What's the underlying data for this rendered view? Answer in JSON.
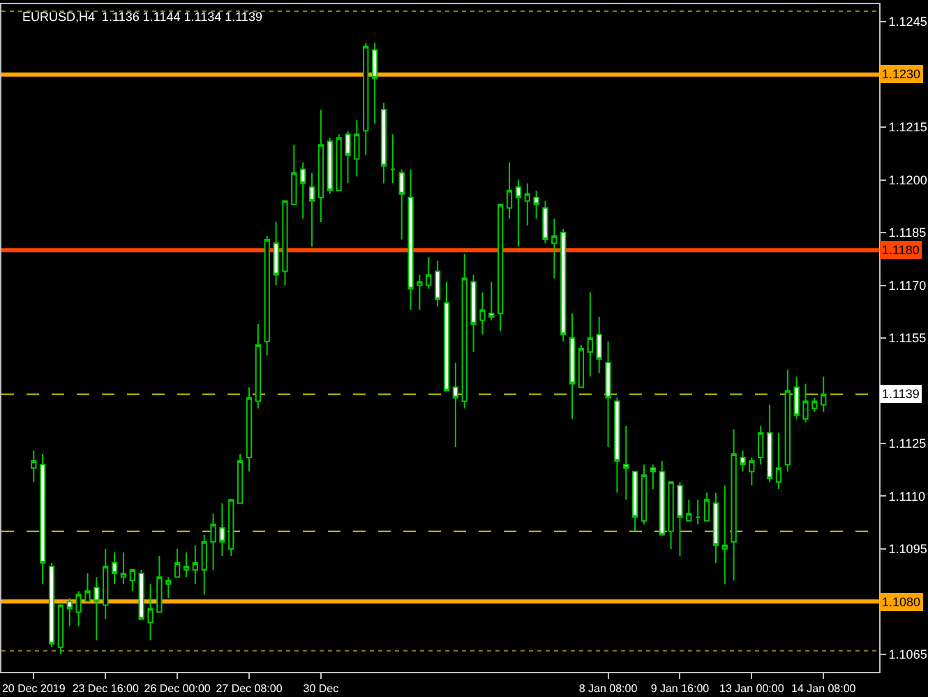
{
  "chart_data": {
    "type": "candlestick",
    "title": "EURUSD,H4  1.1136 1.1144 1.1134 1.1139",
    "categories": [
      "20 Dec 2019",
      null,
      null,
      null,
      null,
      null,
      null,
      null,
      "23 Dec 16:00",
      null,
      null,
      null,
      null,
      null,
      null,
      null,
      "26 Dec 00:00",
      null,
      null,
      null,
      null,
      null,
      null,
      null,
      "27 Dec 08:00",
      null,
      null,
      null,
      null,
      null,
      null,
      null,
      "30 Dec",
      null,
      null,
      null,
      null,
      null,
      null,
      null,
      null,
      null,
      null,
      null,
      null,
      null,
      null,
      null,
      null,
      null,
      null,
      null,
      null,
      null,
      null,
      null,
      null,
      null,
      null,
      null,
      null,
      null,
      null,
      null,
      "8 Jan 08:00",
      null,
      null,
      null,
      null,
      null,
      null,
      null,
      "9 Jan 16:00",
      null,
      null,
      null,
      null,
      null,
      null,
      null,
      "13 Jan 00:00",
      null,
      null,
      null,
      null,
      null,
      null,
      null,
      "14 Jan 08:00"
    ],
    "ohlc": [
      [
        1.1118,
        1.1123,
        1.1114,
        1.112
      ],
      [
        1.1119,
        1.1122,
        1.1085,
        1.1091
      ],
      [
        1.109,
        1.1091,
        1.1067,
        1.1068
      ],
      [
        1.1067,
        1.1079,
        1.1065,
        1.1079
      ],
      [
        1.108,
        1.1081,
        1.1073,
        1.1078
      ],
      [
        1.1077,
        1.1083,
        1.1073,
        1.1082
      ],
      [
        1.108,
        1.1088,
        1.108,
        1.1083
      ],
      [
        1.1084,
        1.1087,
        1.1069,
        1.108
      ],
      [
        1.1079,
        1.1095,
        1.1075,
        1.109
      ],
      [
        1.1091,
        1.1094,
        1.1085,
        1.1088
      ],
      [
        1.1087,
        1.1094,
        1.1085,
        1.1088
      ],
      [
        1.1086,
        1.1089,
        1.1083,
        1.1089
      ],
      [
        1.1088,
        1.1089,
        1.1075,
        1.1075
      ],
      [
        1.1074,
        1.1085,
        1.1069,
        1.1078
      ],
      [
        1.1077,
        1.1093,
        1.1077,
        1.1087
      ],
      [
        1.1085,
        1.1087,
        1.1081,
        1.1086
      ],
      [
        1.1087,
        1.1095,
        1.1087,
        1.1091
      ],
      [
        1.1089,
        1.1094,
        1.1087,
        1.109
      ],
      [
        1.1089,
        1.1096,
        1.1085,
        1.1091
      ],
      [
        1.1089,
        1.1099,
        1.1082,
        1.1097
      ],
      [
        1.1097,
        1.1105,
        1.1089,
        1.1102
      ],
      [
        1.1101,
        1.1108,
        1.1093,
        1.1097
      ],
      [
        1.1095,
        1.1109,
        1.1093,
        1.1109
      ],
      [
        1.1108,
        1.1122,
        1.1108,
        1.112
      ],
      [
        1.1121,
        1.1141,
        1.1117,
        1.1138
      ],
      [
        1.1137,
        1.1159,
        1.1135,
        1.1153
      ],
      [
        1.1154,
        1.1184,
        1.115,
        1.1183
      ],
      [
        1.1182,
        1.1188,
        1.117,
        1.1173
      ],
      [
        1.1174,
        1.1194,
        1.117,
        1.1194
      ],
      [
        1.1193,
        1.121,
        1.1193,
        1.1202
      ],
      [
        1.1203,
        1.1205,
        1.1189,
        1.1199
      ],
      [
        1.1198,
        1.1202,
        1.1181,
        1.1194
      ],
      [
        1.1195,
        1.122,
        1.1188,
        1.121
      ],
      [
        1.1211,
        1.1212,
        1.1196,
        1.1197
      ],
      [
        1.1197,
        1.1213,
        1.1197,
        1.1212
      ],
      [
        1.1213,
        1.1214,
        1.1199,
        1.1207
      ],
      [
        1.1206,
        1.1217,
        1.1201,
        1.1213
      ],
      [
        1.1214,
        1.1239,
        1.1207,
        1.1238
      ],
      [
        1.1237,
        1.1239,
        1.1216,
        1.1229
      ],
      [
        1.122,
        1.1222,
        1.1199,
        1.1204
      ],
      [
        1.1203,
        1.1213,
        1.1199,
        1.1203
      ],
      [
        1.1202,
        1.1203,
        1.1183,
        1.1196
      ],
      [
        1.1195,
        1.1203,
        1.1163,
        1.1169
      ],
      [
        1.117,
        1.1173,
        1.1163,
        1.1171
      ],
      [
        1.117,
        1.1178,
        1.1169,
        1.1173
      ],
      [
        1.1174,
        1.1177,
        1.1164,
        1.1166
      ],
      [
        1.1165,
        1.1171,
        1.114,
        1.114
      ],
      [
        1.1141,
        1.1148,
        1.1124,
        1.1138
      ],
      [
        1.1137,
        1.1179,
        1.1135,
        1.1172
      ],
      [
        1.1171,
        1.1173,
        1.1151,
        1.1159
      ],
      [
        1.116,
        1.1168,
        1.1156,
        1.1163
      ],
      [
        1.1162,
        1.1171,
        1.116,
        1.1161
      ],
      [
        1.1162,
        1.1193,
        1.1157,
        1.1193
      ],
      [
        1.1192,
        1.1205,
        1.1189,
        1.1197
      ],
      [
        1.1198,
        1.12,
        1.1181,
        1.1195
      ],
      [
        1.1194,
        1.1199,
        1.1187,
        1.1196
      ],
      [
        1.1195,
        1.1197,
        1.1189,
        1.1193
      ],
      [
        1.1192,
        1.1194,
        1.1182,
        1.1183
      ],
      [
        1.1182,
        1.1189,
        1.1172,
        1.1184
      ],
      [
        1.1185,
        1.1186,
        1.1154,
        1.1156
      ],
      [
        1.1155,
        1.1162,
        1.1132,
        1.1142
      ],
      [
        1.1141,
        1.1153,
        1.1141,
        1.1152
      ],
      [
        1.1151,
        1.1168,
        1.1144,
        1.1155
      ],
      [
        1.1156,
        1.1161,
        1.1145,
        1.1149
      ],
      [
        1.1148,
        1.1154,
        1.1124,
        1.1138
      ],
      [
        1.1137,
        1.1138,
        1.1111,
        1.112
      ],
      [
        1.1119,
        1.113,
        1.1109,
        1.1118
      ],
      [
        1.1117,
        1.1117,
        1.11,
        1.1104
      ],
      [
        1.1103,
        1.1119,
        1.1102,
        1.1116
      ],
      [
        1.1118,
        1.1119,
        1.1112,
        1.1117
      ],
      [
        1.1117,
        1.112,
        1.1099,
        1.1099
      ],
      [
        1.11,
        1.1114,
        1.1095,
        1.1114
      ],
      [
        1.1113,
        1.1114,
        1.1093,
        1.1104
      ],
      [
        1.1103,
        1.1109,
        1.1103,
        1.1105
      ],
      [
        1.1104,
        1.1109,
        1.1102,
        1.1104
      ],
      [
        1.1103,
        1.1111,
        1.1103,
        1.1109
      ],
      [
        1.1108,
        1.1111,
        1.1091,
        1.1096
      ],
      [
        1.1095,
        1.1113,
        1.1085,
        1.1096
      ],
      [
        1.1097,
        1.1129,
        1.1086,
        1.1122
      ],
      [
        1.1121,
        1.1123,
        1.1117,
        1.1119
      ],
      [
        1.1117,
        1.1121,
        1.1113,
        1.112
      ],
      [
        1.1121,
        1.113,
        1.1119,
        1.1128
      ],
      [
        1.1128,
        1.1136,
        1.1114,
        1.1115
      ],
      [
        1.1114,
        1.1128,
        1.1112,
        1.1118
      ],
      [
        1.1119,
        1.1146,
        1.1117,
        1.114
      ],
      [
        1.1141,
        1.1144,
        1.1132,
        1.1133
      ],
      [
        1.1132,
        1.1142,
        1.1131,
        1.1137
      ],
      [
        1.1135,
        1.1138,
        1.1134,
        1.1137
      ],
      [
        1.1136,
        1.1144,
        1.1134,
        1.1139
      ]
    ],
    "color": "#00c800",
    "ylim": [
      1.106,
      1.125
    ],
    "yticks": [
      1.1245,
      1.1215,
      {
        "value": 1.12,
        "label": "1.1200"
      },
      1.1185,
      {
        "value": 1.117,
        "label": "1.1170"
      },
      1.1155,
      1.1125,
      {
        "value": 1.111,
        "label": "1.1110"
      },
      1.1095,
      1.1065
    ],
    "ref_lines": [
      {
        "axis": "y",
        "value": 1.123,
        "label": "1.1230",
        "color": "#ffa500",
        "line_style": "solid"
      },
      {
        "axis": "y",
        "value": 1.118,
        "label": "1.1180",
        "color": "#ff4500",
        "line_style": "solid"
      },
      {
        "axis": "y",
        "value": 1.108,
        "label": "1.1080",
        "color": "#ffa500",
        "line_style": "solid"
      },
      {
        "axis": "y",
        "value": 1.1139,
        "label": "1.1139",
        "color": "#c8c800",
        "line_style": "dashed"
      },
      {
        "axis": "y",
        "value": 1.11,
        "color": "#e6c800",
        "line_style": "dashed"
      },
      {
        "axis": "y",
        "value": 1.1248,
        "color": "#8c7a20",
        "line_style": "dotted"
      },
      {
        "axis": "y",
        "value": 1.1066,
        "color": "#8c7a20",
        "line_style": "dotted"
      }
    ],
    "grid": false
  }
}
